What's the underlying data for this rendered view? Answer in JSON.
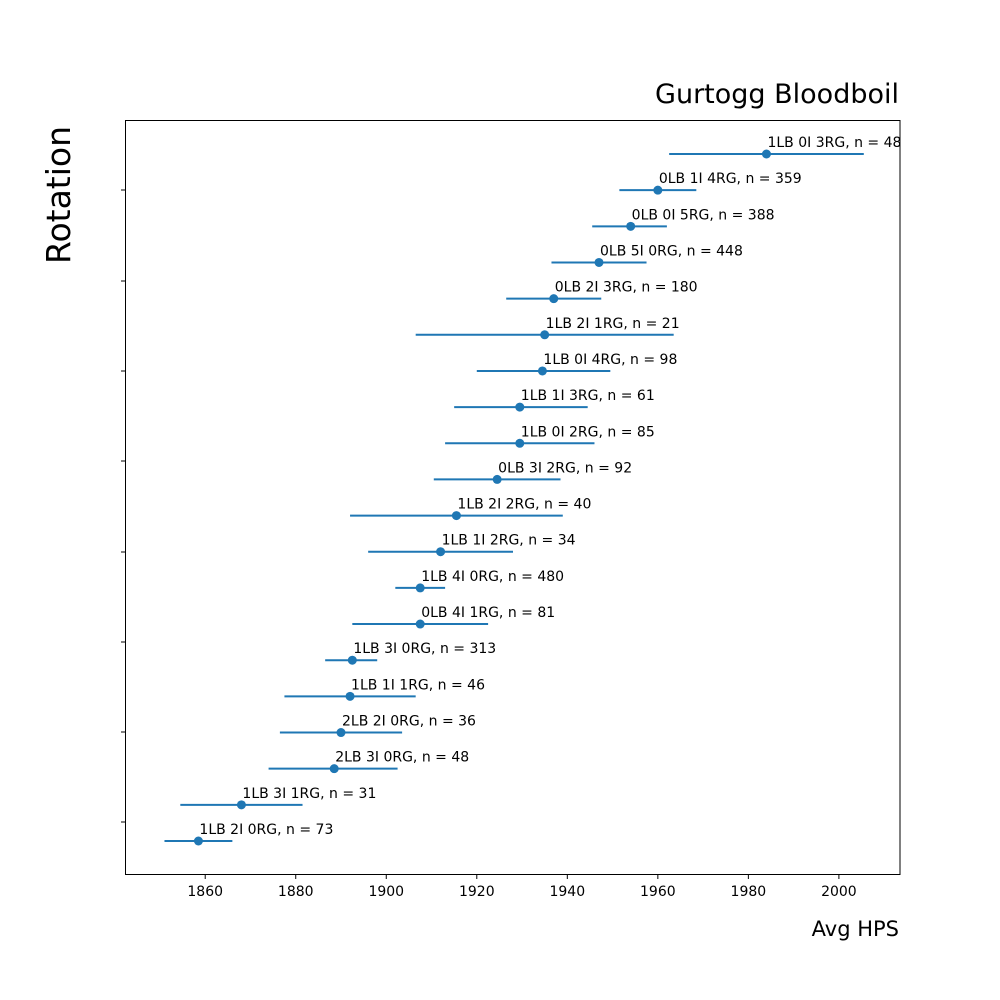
{
  "chart_data": {
    "type": "scatter",
    "title": "Gurtogg Bloodboil",
    "xlabel": "Avg HPS",
    "ylabel": "Rotation",
    "xlim": [
      1842.5,
      2013.5
    ],
    "x_ticks": [
      "1860",
      "1880",
      "1900",
      "1920",
      "1940",
      "1960",
      "1980",
      "2000"
    ],
    "grid": false,
    "color": "#1f77b4",
    "points": [
      {
        "label": "1LB 0I 3RG, n = 48",
        "value": 1984,
        "lo": 1962.5,
        "hi": 2005.5
      },
      {
        "label": "0LB 1I 4RG, n = 359",
        "value": 1960,
        "lo": 1951.5,
        "hi": 1968.5
      },
      {
        "label": "0LB 0I 5RG, n = 388",
        "value": 1954,
        "lo": 1945.5,
        "hi": 1962.0
      },
      {
        "label": "0LB 5I 0RG, n = 448",
        "value": 1947,
        "lo": 1936.5,
        "hi": 1957.5
      },
      {
        "label": "0LB 2I 3RG, n = 180",
        "value": 1937,
        "lo": 1926.5,
        "hi": 1947.5
      },
      {
        "label": "1LB 2I 1RG, n = 21",
        "value": 1935,
        "lo": 1906.5,
        "hi": 1963.5
      },
      {
        "label": "1LB 0I 4RG, n = 98",
        "value": 1934.5,
        "lo": 1920.0,
        "hi": 1949.5
      },
      {
        "label": "1LB 1I 3RG, n = 61",
        "value": 1929.5,
        "lo": 1915.0,
        "hi": 1944.5
      },
      {
        "label": "1LB 0I 2RG, n = 85",
        "value": 1929.5,
        "lo": 1913.0,
        "hi": 1946.0
      },
      {
        "label": "0LB 3I 2RG, n = 92",
        "value": 1924.5,
        "lo": 1910.5,
        "hi": 1938.5
      },
      {
        "label": "1LB 2I 2RG, n = 40",
        "value": 1915.5,
        "lo": 1892.0,
        "hi": 1939.0
      },
      {
        "label": "1LB 1I 2RG, n = 34",
        "value": 1912,
        "lo": 1896.0,
        "hi": 1928.0
      },
      {
        "label": "1LB 4I 0RG, n = 480",
        "value": 1907.5,
        "lo": 1902.0,
        "hi": 1913.0
      },
      {
        "label": "0LB 4I 1RG, n = 81",
        "value": 1907.5,
        "lo": 1892.5,
        "hi": 1922.5
      },
      {
        "label": "1LB 3I 0RG, n = 313",
        "value": 1892.5,
        "lo": 1886.5,
        "hi": 1898.0
      },
      {
        "label": "1LB 1I 1RG, n = 46",
        "value": 1892,
        "lo": 1877.5,
        "hi": 1906.5
      },
      {
        "label": "2LB 2I 0RG, n = 36",
        "value": 1890,
        "lo": 1876.5,
        "hi": 1903.5
      },
      {
        "label": "2LB 3I 0RG, n = 48",
        "value": 1888.5,
        "lo": 1874.0,
        "hi": 1902.5
      },
      {
        "label": "1LB 3I 1RG, n = 31",
        "value": 1868,
        "lo": 1854.5,
        "hi": 1881.5
      },
      {
        "label": "1LB 2I 0RG, n = 73",
        "value": 1858.5,
        "lo": 1851.0,
        "hi": 1866.0
      }
    ]
  }
}
